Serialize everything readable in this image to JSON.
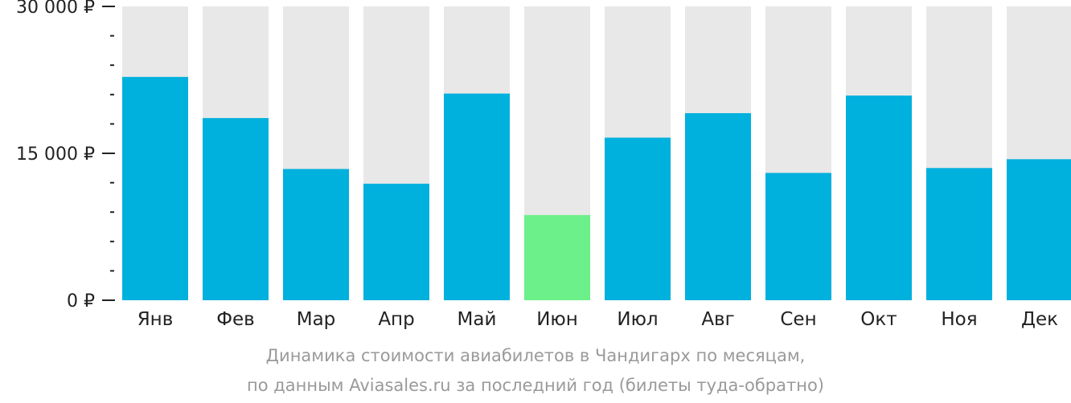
{
  "chart_data": {
    "type": "bar",
    "categories": [
      "Янв",
      "Фев",
      "Мар",
      "Апр",
      "Май",
      "Июн",
      "Июл",
      "Авг",
      "Сен",
      "Окт",
      "Ноя",
      "Дек"
    ],
    "values": [
      22800,
      18600,
      13400,
      11900,
      21100,
      8700,
      16600,
      19100,
      13000,
      20900,
      13500,
      14400
    ],
    "ylim": [
      0,
      30000
    ],
    "yticks": [
      {
        "value": 0,
        "label": "0 ₽"
      },
      {
        "value": 15000,
        "label": "15 000 ₽"
      },
      {
        "value": 30000,
        "label": "30 000 ₽"
      }
    ],
    "minor_tick_step": 3000,
    "highlight_category": "Июн",
    "colors": {
      "bar": "#00b0dd",
      "highlight_bar": "#6cf08a",
      "background_bar": "#e8e8e8",
      "tick_label": "#222222",
      "axis_tick": "#222222"
    },
    "title": "",
    "xlabel": "",
    "ylabel": ""
  },
  "caption": {
    "line1": "Динамика стоимости авиабилетов в Чандигарх по месяцам,",
    "line2": "по данным Aviasales.ru за последний год (билеты туда-обратно)"
  }
}
